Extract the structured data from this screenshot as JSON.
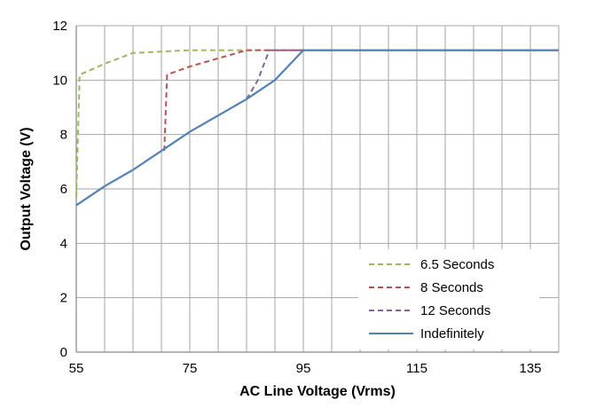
{
  "chart_data": {
    "type": "line",
    "title": "",
    "xlabel": "AC Line Voltage (Vrms)",
    "ylabel": "Output Voltage (V)",
    "xlim": [
      55,
      140
    ],
    "ylim": [
      0,
      12
    ],
    "x_major_ticks": [
      55,
      75,
      95,
      115,
      135
    ],
    "x_grid_step": 5,
    "y_ticks": [
      0,
      2,
      4,
      6,
      8,
      10,
      12
    ],
    "grid": true,
    "legend_position": "bottom-right",
    "series": [
      {
        "name": "6.5 Seconds",
        "color": "#9bbb59",
        "dash": "dashed",
        "points": [
          [
            55,
            5.7
          ],
          [
            55.6,
            10.2
          ],
          [
            60,
            10.6
          ],
          [
            65,
            11.0
          ],
          [
            75,
            11.1
          ],
          [
            85,
            11.1
          ],
          [
            140,
            11.1
          ]
        ]
      },
      {
        "name": "8 Seconds",
        "color": "#c0504d",
        "dash": "dashed",
        "points": [
          [
            70.5,
            7.4
          ],
          [
            71,
            10.2
          ],
          [
            75,
            10.5
          ],
          [
            80,
            10.8
          ],
          [
            85,
            11.1
          ],
          [
            140,
            11.1
          ]
        ]
      },
      {
        "name": "12 Seconds",
        "color": "#8064a2",
        "dash": "dashed",
        "points": [
          [
            85,
            9.3
          ],
          [
            87,
            10.0
          ],
          [
            89,
            11.1
          ],
          [
            140,
            11.1
          ]
        ]
      },
      {
        "name": "Indefinitely",
        "color": "#4f81bd",
        "dash": "solid",
        "points": [
          [
            55,
            5.4
          ],
          [
            60,
            6.1
          ],
          [
            65,
            6.7
          ],
          [
            70,
            7.4
          ],
          [
            75,
            8.1
          ],
          [
            80,
            8.7
          ],
          [
            85,
            9.3
          ],
          [
            90,
            10.0
          ],
          [
            95,
            11.1
          ],
          [
            140,
            11.1
          ]
        ]
      }
    ]
  }
}
